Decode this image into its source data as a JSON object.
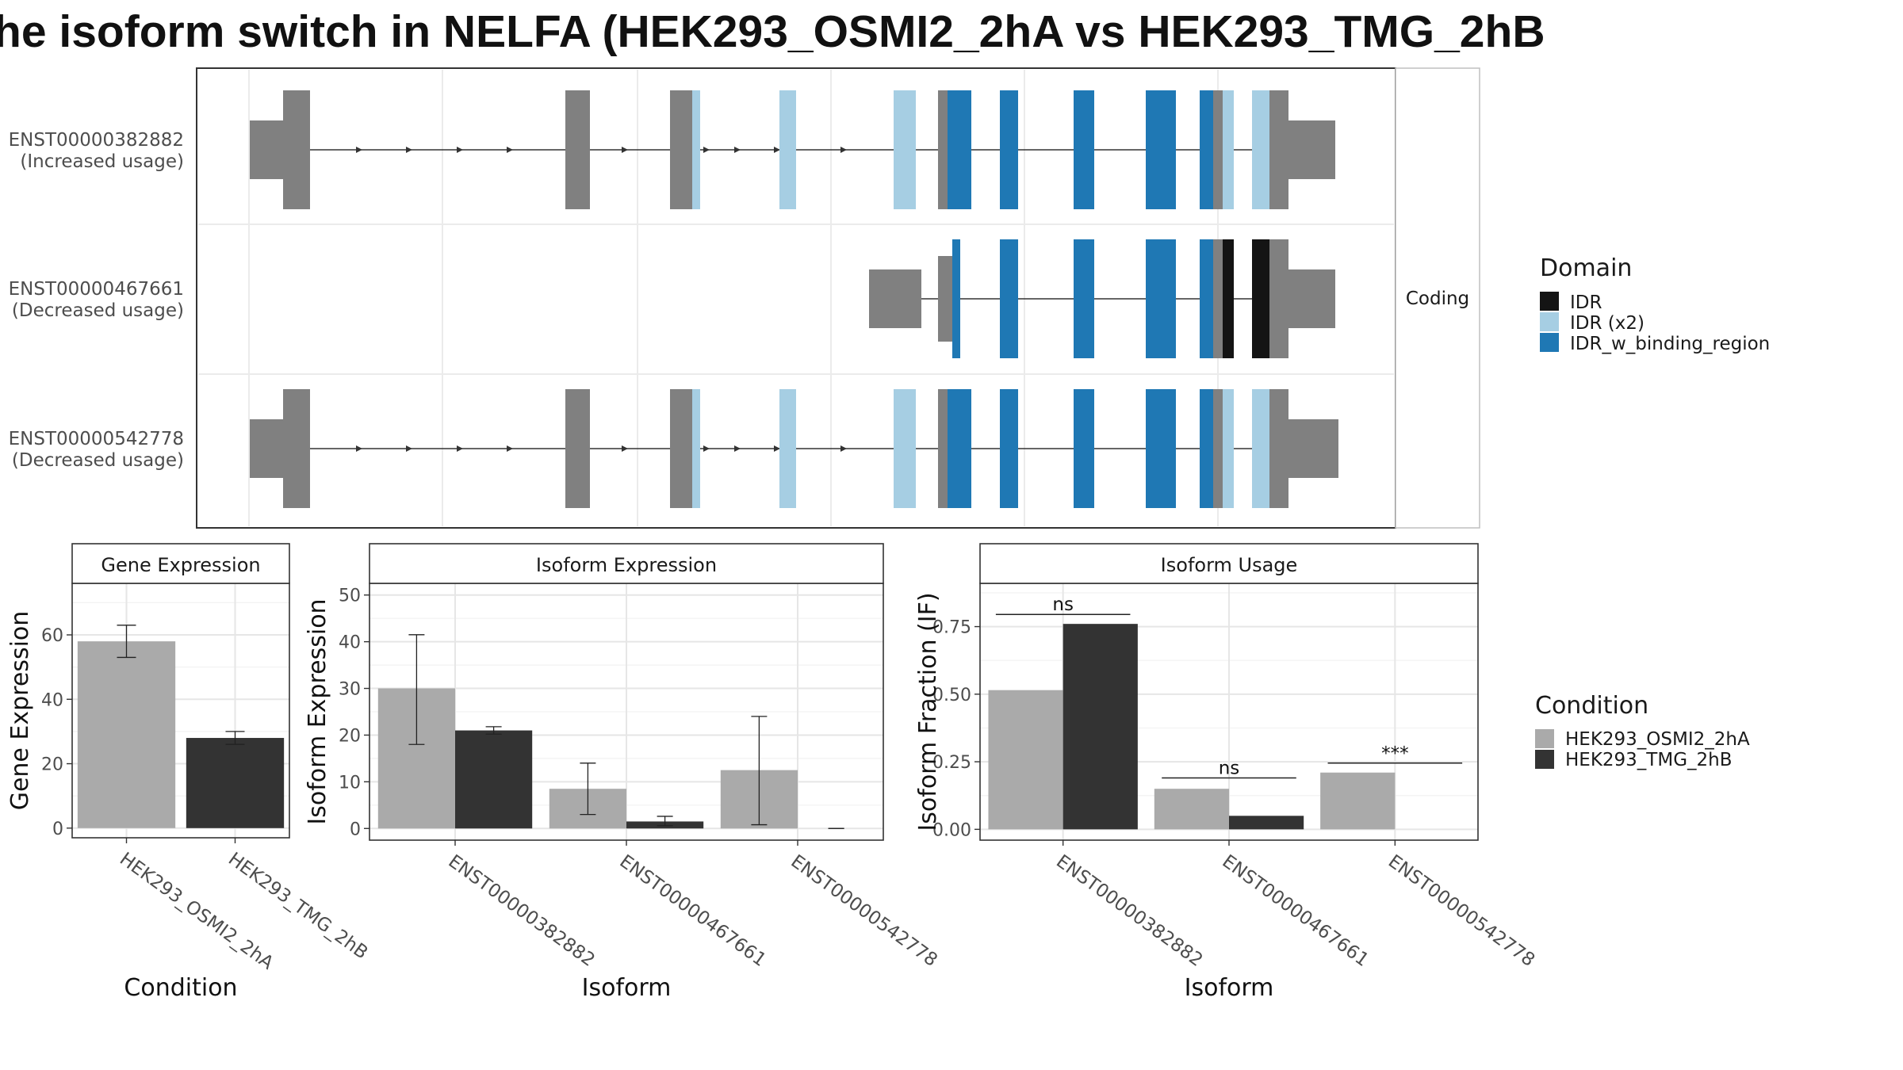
{
  "title": "he isoform switch in NELFA (HEK293_OSMI2_2hA vs HEK293_TMG_2hB",
  "colors": {
    "gray_utr": "#808080",
    "idr": "#141414",
    "idr_x2": "#a6cee3",
    "idr_binding": "#1f78b4",
    "cond_a": "#aaaaaa",
    "cond_b": "#333333"
  },
  "structure": {
    "strip_label": "Coding",
    "transcripts": [
      {
        "id": "ENST00000382882",
        "note": "(Increased usage)"
      },
      {
        "id": "ENST00000467661",
        "note": "(Decreased usage)"
      },
      {
        "id": "ENST00000542778",
        "note": "(Decreased usage)"
      }
    ]
  },
  "domain_legend": {
    "title": "Domain",
    "items": [
      {
        "label": "IDR",
        "color": "#141414"
      },
      {
        "label": "IDR (x2)",
        "color": "#a6cee3"
      },
      {
        "label": "IDR_w_binding_region",
        "color": "#1f78b4"
      }
    ]
  },
  "condition_legend": {
    "title": "Condition",
    "items": [
      {
        "label": "HEK293_OSMI2_2hA",
        "color": "#aaaaaa"
      },
      {
        "label": "HEK293_TMG_2hB",
        "color": "#333333"
      }
    ]
  },
  "chart_data": [
    {
      "type": "bar",
      "title": "Gene Expression",
      "xlabel": "Condition",
      "ylabel": "Gene Expression",
      "categories": [
        "HEK293_OSMI2_2hA",
        "HEK293_TMG_2hB"
      ],
      "values": [
        58,
        28
      ],
      "error_low": [
        53,
        26
      ],
      "error_high": [
        63,
        30
      ],
      "ylim": [
        -3,
        76
      ],
      "yticks": [
        0,
        20,
        40,
        60
      ]
    },
    {
      "type": "bar",
      "title": "Isoform Expression",
      "xlabel": "Isoform",
      "ylabel": "Isoform Expression",
      "categories": [
        "ENST00000382882",
        "ENST00000467661",
        "ENST00000542778"
      ],
      "series": [
        {
          "name": "HEK293_OSMI2_2hA",
          "values": [
            30,
            8.5,
            12.5
          ],
          "error_low": [
            18,
            3,
            0.8
          ],
          "error_high": [
            41.5,
            14,
            24
          ]
        },
        {
          "name": "HEK293_TMG_2hB",
          "values": [
            21,
            1.5,
            0
          ],
          "error_low": [
            20.2,
            0.6,
            0
          ],
          "error_high": [
            21.8,
            2.6,
            0
          ]
        }
      ],
      "ylim": [
        -2.5,
        52.5
      ],
      "yticks": [
        0,
        10,
        20,
        30,
        40,
        50
      ]
    },
    {
      "type": "bar",
      "title": "Isoform Usage",
      "xlabel": "Isoform",
      "ylabel": "Isoform Fraction (IF)",
      "categories": [
        "ENST00000382882",
        "ENST00000467661",
        "ENST00000542778"
      ],
      "series": [
        {
          "name": "HEK293_OSMI2_2hA",
          "values": [
            0.515,
            0.15,
            0.21
          ]
        },
        {
          "name": "HEK293_TMG_2hB",
          "values": [
            0.76,
            0.05,
            0
          ]
        }
      ],
      "annotations": [
        "ns",
        "ns",
        "***"
      ],
      "annotation_y": [
        0.795,
        0.19,
        0.245
      ],
      "ylim": [
        -0.04,
        0.91
      ],
      "yticks": [
        0.0,
        0.25,
        0.5,
        0.75
      ],
      "ytick_labels": [
        "0.00",
        "0.25",
        "0.50",
        "0.75"
      ]
    }
  ]
}
